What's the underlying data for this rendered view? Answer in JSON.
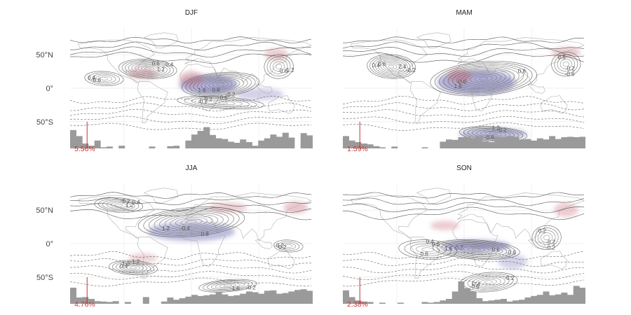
{
  "chart_data": [
    {
      "type": "contour-map",
      "title": "DJF",
      "yticks": [
        "50°N",
        "0°",
        "50°S"
      ],
      "share_label": "5.56%",
      "colors": {
        "neg": "#6d6bb4",
        "pos": "#c8707a",
        "hist": "#9a9a9a",
        "marker": "#c0323a"
      },
      "contour_labels": [
        "1.2",
        "1.6",
        "0.6",
        "-0.6",
        "0.4",
        "-0.4",
        "0.8",
        "-0.2",
        "1.2",
        "-0.6",
        "0.6",
        "-0.2",
        "0.2"
      ],
      "hist_heights": [
        0.82,
        0.55,
        0.22,
        0.12,
        0.35,
        0.05,
        0.08,
        0.0,
        0.12,
        0.0,
        0.0,
        0.0,
        0.0,
        0.08,
        0.0,
        0.0,
        0.1,
        0.12,
        0.0,
        0.35,
        0.62,
        0.78,
        0.95,
        0.6,
        0.45,
        0.42,
        0.3,
        0.25,
        0.4,
        0.28,
        0.12,
        0.35,
        0.45,
        0.62,
        0.52,
        0.7,
        0.48,
        0.0,
        0.68,
        0.58
      ]
    },
    {
      "type": "contour-map",
      "title": "MAM",
      "yticks": [
        "50°N",
        "0°",
        "50°S"
      ],
      "share_label": "1.59%",
      "colors": {
        "neg": "#6d6bb4",
        "pos": "#c8707a",
        "hist": "#9a9a9a",
        "marker": "#c0323a"
      },
      "contour_labels": [
        "2.4",
        "1.6",
        "1.2",
        "-0.2",
        "0.4",
        "0.8",
        "-0.6",
        "0.6",
        "-0.2",
        "-0.6",
        "0.2",
        "-0.6",
        "0.6"
      ],
      "hist_heights": [
        0.55,
        0.35,
        0.28,
        0.22,
        0.18,
        0.1,
        0.05,
        0.0,
        0.08,
        0.0,
        0.0,
        0.0,
        0.0,
        0.05,
        0.0,
        0.0,
        0.3,
        0.4,
        0.38,
        0.5,
        0.52,
        0.45,
        0.55,
        0.32,
        0.28,
        0.48,
        0.5,
        0.55,
        0.52,
        0.4,
        0.42,
        0.35,
        0.45,
        0.4,
        0.55,
        0.42,
        0.5,
        0.52,
        0.5,
        0.52
      ]
    },
    {
      "type": "contour-map",
      "title": "JJA",
      "yticks": [
        "50°N",
        "0°",
        "50°S"
      ],
      "share_label": "4.76%",
      "colors": {
        "neg": "#6d6bb4",
        "pos": "#c8707a",
        "hist": "#9a9a9a",
        "marker": "#c0323a"
      },
      "contour_labels": [
        "1.2",
        "1.2",
        "-1.2",
        "1.6",
        "-0.2",
        "0.4",
        "-0.4",
        "1.2",
        "-0.2",
        "0.2",
        "-0.2",
        "0.8",
        "0.4"
      ],
      "hist_heights": [
        0.72,
        0.28,
        0.3,
        0.22,
        0.12,
        0.1,
        0.08,
        0.12,
        0.0,
        0.08,
        0.0,
        0.0,
        0.3,
        0.0,
        0.0,
        0.1,
        0.28,
        0.18,
        0.25,
        0.32,
        0.4,
        0.35,
        0.38,
        0.42,
        0.5,
        0.42,
        0.35,
        0.38,
        0.45,
        0.55,
        0.52,
        0.45,
        0.58,
        0.6,
        0.45,
        0.48,
        0.55,
        0.62,
        0.65,
        0.58
      ]
    },
    {
      "type": "contour-map",
      "title": "SON",
      "yticks": [
        "50°N",
        "0°",
        "50°S"
      ],
      "share_label": "2.38%",
      "colors": {
        "neg": "#6d6bb4",
        "pos": "#c8707a",
        "hist": "#9a9a9a",
        "marker": "#c0323a"
      },
      "contour_labels": [
        "0.6",
        "-0.6",
        "0.4",
        "-0.2",
        "1.6",
        "-0.2",
        "0.6",
        "0.2",
        "-0.6",
        "0.4",
        "0.6",
        "-0.2",
        "0.2"
      ],
      "hist_heights": [
        0.6,
        0.3,
        0.15,
        0.1,
        0.08,
        0.0,
        0.05,
        0.0,
        0.0,
        0.05,
        0.0,
        0.0,
        0.0,
        0.08,
        0.05,
        0.08,
        0.15,
        0.22,
        0.55,
        1.0,
        0.7,
        0.55,
        0.25,
        0.12,
        0.15,
        0.18,
        0.22,
        0.1,
        0.15,
        0.18,
        0.28,
        0.35,
        0.4,
        0.55,
        0.38,
        0.42,
        0.5,
        0.4,
        0.8,
        0.72
      ]
    }
  ]
}
